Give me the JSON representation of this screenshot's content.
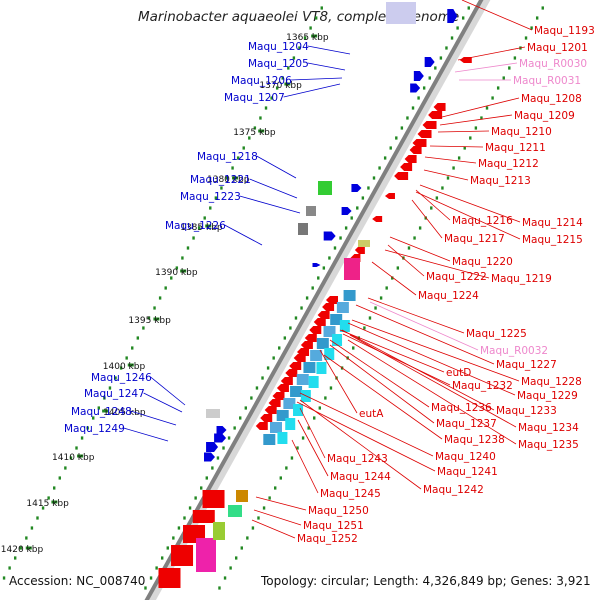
{
  "title": "Marinobacter aquaeolei VT8, complete genome",
  "footer": {
    "accession": "Accession: NC_008740",
    "topology": "Topology: circular; Length: 4,326,849 bp; Genes: 3,921"
  },
  "colors": {
    "left_label": "#0000cc",
    "right_label": "#dd0000",
    "rna_label": "#ee88cc",
    "forward_cds": "#0000dd",
    "reverse_cds": "#ee0000",
    "backbone": "#808080",
    "gc_dot": "#228822"
  },
  "scale_labels": [
    "1365 kbp",
    "1370 kbp",
    "1375 kbp",
    "1380 kbp",
    "1385 kbp",
    "1390 kbp",
    "1395 kbp",
    "1400 kbp",
    "1405 kbp",
    "1410 kbp",
    "1415 kbp",
    "1420 kbp"
  ],
  "left_labels": [
    "Maqu_1204",
    "Maqu_1205",
    "Maqu_1206",
    "Maqu_1207",
    "Maqu_1218",
    "Maqu_1221",
    "Maqu_1223",
    "Maqu_1226",
    "Maqu_1246",
    "Maqu_1247",
    "Maqu_1248",
    "Maqu_1249"
  ],
  "right_labels": [
    "Maqu_1193",
    "Maqu_1201",
    "Maqu_R0030",
    "Maqu_R0031",
    "Maqu_1208",
    "Maqu_1209",
    "Maqu_1210",
    "Maqu_1211",
    "Maqu_1212",
    "Maqu_1213",
    "Maqu_1216",
    "Maqu_1214",
    "Maqu_1217",
    "Maqu_1215",
    "Maqu_1220",
    "Maqu_1222",
    "Maqu_1219",
    "Maqu_1224",
    "Maqu_1225",
    "Maqu_R0032",
    "Maqu_1227",
    "eutD",
    "Maqu_1228",
    "Maqu_1232",
    "Maqu_1229",
    "eutA",
    "Maqu_1236",
    "Maqu_1233",
    "Maqu_1237",
    "Maqu_1234",
    "Maqu_1238",
    "Maqu_1235",
    "Maqu_1240",
    "Maqu_1243",
    "Maqu_1241",
    "Maqu_1244",
    "Maqu_1242",
    "Maqu_1245",
    "Maqu_1250",
    "Maqu_1251",
    "Maqu_1252"
  ],
  "rna_labels": [
    "Maqu_R0030",
    "Maqu_R0031",
    "Maqu_R0032"
  ]
}
